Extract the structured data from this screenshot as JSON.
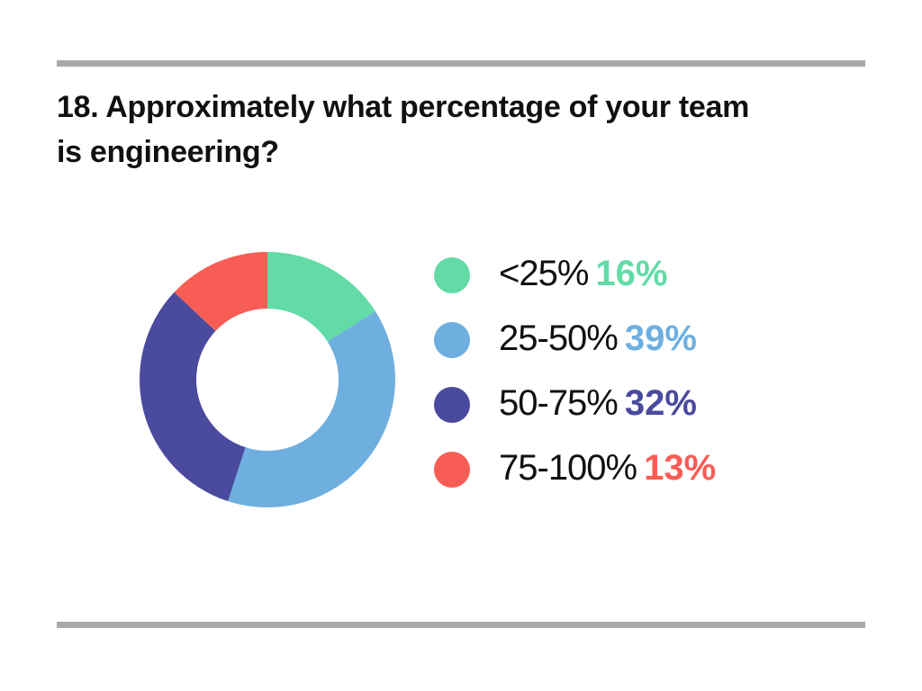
{
  "title": {
    "line1": "18. Approximately what percentage of your team",
    "line2": "is engineering?"
  },
  "chart_data": {
    "type": "pie",
    "variant": "donut",
    "title": "18. Approximately what percentage of your team is engineering?",
    "legend_position": "right",
    "slices": [
      {
        "label": "<25%",
        "percent_label": "16%",
        "value": 16,
        "color": "#62dba6"
      },
      {
        "label": "25-50%",
        "percent_label": "39%",
        "value": 39,
        "color": "#6eafe0"
      },
      {
        "label": "50-75%",
        "percent_label": "32%",
        "value": 32,
        "color": "#4a4a9e"
      },
      {
        "label": "75-100%",
        "percent_label": "13%",
        "value": 13,
        "color": "#f85d55"
      }
    ]
  }
}
